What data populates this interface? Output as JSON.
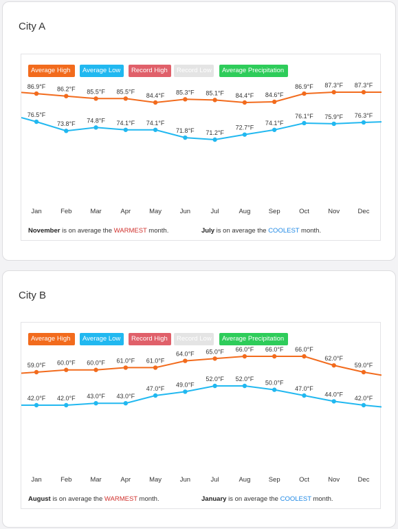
{
  "colors": {
    "average_high": "#f26b1d",
    "average_low": "#21b8f0",
    "record_high": "#e0606a",
    "record_low": "#e4e4e4",
    "average_precipitation": "#2ecc5a",
    "warmest": "#d0312d",
    "coolest": "#1e88e5"
  },
  "legend": [
    {
      "label": "Average High",
      "key": "average_high"
    },
    {
      "label": "Average Low",
      "key": "average_low"
    },
    {
      "label": "Record High",
      "key": "record_high"
    },
    {
      "label": "Record Low",
      "key": "record_low"
    },
    {
      "label": "Average Precipitation",
      "key": "average_precipitation"
    }
  ],
  "cities": [
    {
      "title": "City A",
      "summary": {
        "warm_month": "November",
        "warm_mid": " is on average the ",
        "warm_word": "WARMEST",
        "warm_end": " month.",
        "cool_month": "July",
        "cool_mid": " is on average the ",
        "cool_word": "COOLEST",
        "cool_end": " month."
      }
    },
    {
      "title": "City B",
      "summary": {
        "warm_month": "August",
        "warm_mid": " is on average the ",
        "warm_word": "WARMEST",
        "warm_end": " month.",
        "cool_month": "January",
        "cool_mid": " is on average the ",
        "cool_word": "COOLEST",
        "cool_end": " month."
      }
    }
  ],
  "chart_data": [
    {
      "type": "line",
      "title": "City A",
      "categories": [
        "Jan",
        "Feb",
        "Mar",
        "Apr",
        "May",
        "Jun",
        "Jul",
        "Aug",
        "Sep",
        "Oct",
        "Nov",
        "Dec"
      ],
      "series": [
        {
          "name": "Average High",
          "unit": "°F",
          "values": [
            86.9,
            86.2,
            85.5,
            85.5,
            84.4,
            85.3,
            85.1,
            84.4,
            84.6,
            86.9,
            87.3,
            87.3
          ],
          "labels": [
            "86.9°F",
            "86.2°F",
            "85.5°F",
            "85.5°F",
            "84.4°F",
            "85.3°F",
            "85.1°F",
            "84.4°F",
            "84.6°F",
            "86.9°F",
            "87.3°F",
            "87.3°F"
          ]
        },
        {
          "name": "Average Low",
          "unit": "°F",
          "values": [
            76.5,
            73.8,
            74.8,
            74.1,
            74.1,
            71.8,
            71.2,
            72.7,
            74.1,
            76.1,
            75.9,
            76.3
          ],
          "labels": [
            "76.5°F",
            "73.8°F",
            "74.8°F",
            "74.1°F",
            "74.1°F",
            "71.8°F",
            "71.2°F",
            "72.7°F",
            "74.1°F",
            "76.1°F",
            "75.9°F",
            "76.3°F"
          ]
        }
      ],
      "grid": false
    },
    {
      "type": "line",
      "title": "City B",
      "categories": [
        "Jan",
        "Feb",
        "Mar",
        "Apr",
        "May",
        "Jun",
        "Jul",
        "Aug",
        "Sep",
        "Oct",
        "Nov",
        "Dec"
      ],
      "series": [
        {
          "name": "Average High",
          "unit": "°F",
          "values": [
            59.0,
            60.0,
            60.0,
            61.0,
            61.0,
            64.0,
            65.0,
            66.0,
            66.0,
            66.0,
            62.0,
            59.0
          ],
          "labels": [
            "59.0°F",
            "60.0°F",
            "60.0°F",
            "61.0°F",
            "61.0°F",
            "64.0°F",
            "65.0°F",
            "66.0°F",
            "66.0°F",
            "66.0°F",
            "62.0°F",
            "59.0°F"
          ]
        },
        {
          "name": "Average Low",
          "unit": "°F",
          "values": [
            42.0,
            42.0,
            43.0,
            43.0,
            47.0,
            49.0,
            52.0,
            52.0,
            50.0,
            47.0,
            44.0,
            42.0
          ],
          "labels": [
            "42.0°F",
            "42.0°F",
            "43.0°F",
            "43.0°F",
            "47.0°F",
            "49.0°F",
            "52.0°F",
            "52.0°F",
            "50.0°F",
            "47.0°F",
            "44.0°F",
            "42.0°F"
          ]
        }
      ],
      "grid": false
    }
  ]
}
